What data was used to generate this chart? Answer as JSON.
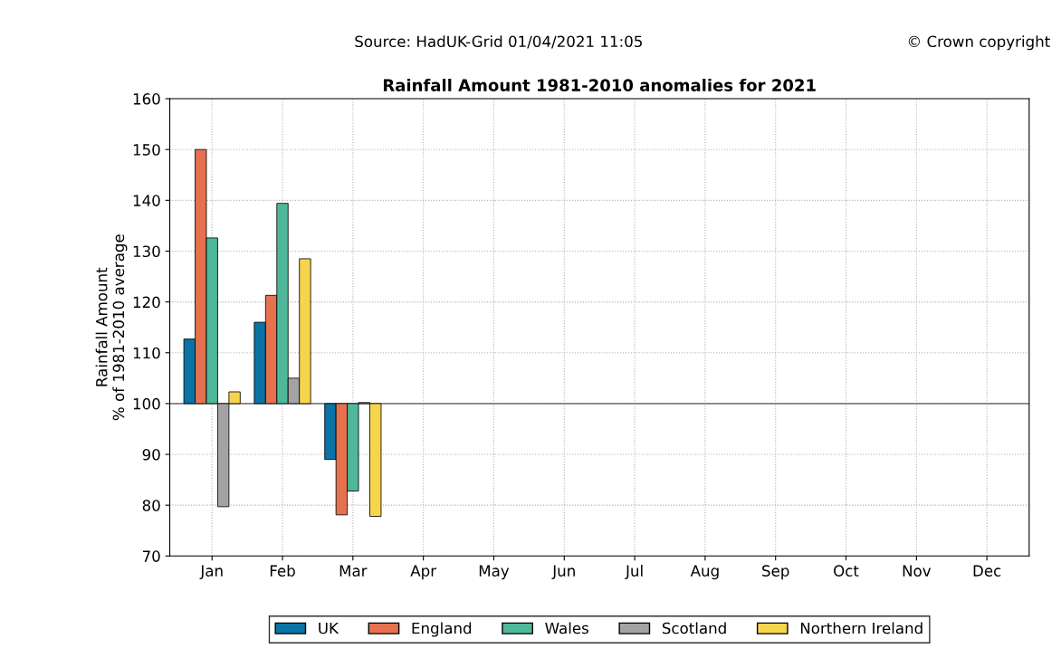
{
  "chart_data": {
    "type": "bar",
    "title": "Rainfall Amount 1981-2010 anomalies for 2021",
    "ylabel": "Rainfall Amount\n% of 1981-2010 average",
    "annotations": [
      "Source: HadUK-Grid 01/04/2021 11:05",
      "© Crown copyright"
    ],
    "categories": [
      "Jan",
      "Feb",
      "Mar",
      "Apr",
      "May",
      "Jun",
      "Jul",
      "Aug",
      "Sep",
      "Oct",
      "Nov",
      "Dec"
    ],
    "series": [
      {
        "name": "UK",
        "color": "#0a73a6",
        "base": [
          100,
          100,
          100,
          null,
          null,
          null,
          null,
          null,
          null,
          null,
          null,
          null
        ],
        "values": [
          12.7,
          16,
          -11,
          null,
          null,
          null,
          null,
          null,
          null,
          null,
          null,
          null
        ]
      },
      {
        "name": "England",
        "color": "#e5714f",
        "base": [
          100,
          100,
          100,
          null,
          null,
          null,
          null,
          null,
          null,
          null,
          null,
          null
        ],
        "values": [
          50,
          21.3,
          -21.9,
          null,
          null,
          null,
          null,
          null,
          null,
          null,
          null,
          null
        ]
      },
      {
        "name": "Wales",
        "color": "#4fb89a",
        "base": [
          100,
          100,
          100,
          null,
          null,
          null,
          null,
          null,
          null,
          null,
          null,
          null
        ],
        "values": [
          32.6,
          39.4,
          -17.2,
          null,
          null,
          null,
          null,
          null,
          null,
          null,
          null,
          null
        ]
      },
      {
        "name": "Scotland",
        "color": "#a3a3a3",
        "base": [
          100,
          100,
          100,
          null,
          null,
          null,
          null,
          null,
          null,
          null,
          null,
          null
        ],
        "values": [
          -20.3,
          5,
          0.2,
          null,
          null,
          null,
          null,
          null,
          null,
          null,
          null,
          null
        ]
      },
      {
        "name": "Northern Ireland",
        "color": "#f6d54e",
        "base": [
          100,
          100,
          100,
          null,
          null,
          null,
          null,
          null,
          null,
          null,
          null,
          null
        ],
        "values": [
          2.3,
          28.5,
          -22.2,
          null,
          null,
          null,
          null,
          null,
          null,
          null,
          null,
          null
        ]
      }
    ],
    "ylim": [
      70,
      160
    ],
    "yticks": [
      70,
      80,
      90,
      100,
      110,
      120,
      130,
      140,
      150,
      160
    ],
    "ref_lines": [
      {
        "axis": "y",
        "value": 100,
        "color": "#808080"
      }
    ],
    "grid": true,
    "legend": "bottom"
  }
}
